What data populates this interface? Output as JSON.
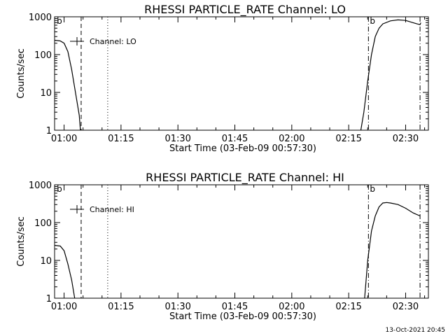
{
  "footer_timestamp": "13-Oct-2021 20:45",
  "chart_data": [
    {
      "type": "line",
      "title": "RHESSI PARTICLE_RATE Channel: LO",
      "xlabel": "Start Time (03-Feb-09 00:57:30)",
      "ylabel": "Counts/sec",
      "yscale": "log",
      "ylim": [
        1,
        1000
      ],
      "yticks": [
        1,
        10,
        100,
        1000
      ],
      "ytick_labels": [
        "1",
        "10",
        "100",
        "1000"
      ],
      "xlim": [
        -2.5,
        96
      ],
      "xticks": [
        0,
        15,
        30,
        45,
        60,
        75,
        90
      ],
      "xtick_labels": [
        "01:00",
        "01:15",
        "01:30",
        "01:45",
        "02:00",
        "02:15",
        "02:30"
      ],
      "legend": {
        "label": "Channel: LO",
        "placement": "top-left"
      },
      "markers": [
        {
          "x": -2.3,
          "label": "b",
          "style": "text"
        },
        {
          "x": 4.5,
          "style": "dashed"
        },
        {
          "x": 11.5,
          "style": "dotted"
        },
        {
          "x": 80.2,
          "style": "dashdot",
          "label": "b"
        },
        {
          "x": 93.8,
          "style": "dashdot"
        }
      ],
      "series": [
        {
          "points": [
            [
              -2.5,
              240
            ],
            [
              -1,
              230
            ],
            [
              0,
              200
            ],
            [
              1,
              120
            ],
            [
              2,
              40
            ],
            [
              3,
              10
            ],
            [
              4,
              2.5
            ],
            [
              4.3,
              1
            ]
          ],
          "points2": [
            [
              78.2,
              1
            ],
            [
              79,
              3
            ],
            [
              80,
              20
            ],
            [
              81,
              100
            ],
            [
              82,
              300
            ],
            [
              83,
              500
            ],
            [
              84,
              650
            ],
            [
              86,
              780
            ],
            [
              88,
              830
            ],
            [
              90,
              800
            ],
            [
              91.5,
              720
            ],
            [
              93,
              650
            ],
            [
              93.8,
              620
            ],
            [
              94,
              700
            ]
          ]
        }
      ]
    },
    {
      "type": "line",
      "title": "RHESSI PARTICLE_RATE Channel: HI",
      "xlabel": "Start Time (03-Feb-09 00:57:30)",
      "ylabel": "Counts/sec",
      "yscale": "log",
      "ylim": [
        1,
        1000
      ],
      "yticks": [
        1,
        10,
        100,
        1000
      ],
      "ytick_labels": [
        "1",
        "10",
        "100",
        "1000"
      ],
      "xlim": [
        -2.5,
        96
      ],
      "xticks": [
        0,
        15,
        30,
        45,
        60,
        75,
        90
      ],
      "xtick_labels": [
        "01:00",
        "01:15",
        "01:30",
        "01:45",
        "02:00",
        "02:15",
        "02:30"
      ],
      "legend": {
        "label": "Channel: HI",
        "placement": "top-left"
      },
      "markers": [
        {
          "x": -2.3,
          "label": "b",
          "style": "text"
        },
        {
          "x": 4.5,
          "style": "dashed"
        },
        {
          "x": 11.5,
          "style": "dotted"
        },
        {
          "x": 80.2,
          "style": "dashdot",
          "label": "b"
        },
        {
          "x": 93.8,
          "style": "dashdot"
        }
      ],
      "series": [
        {
          "points": [
            [
              -2.5,
              25
            ],
            [
              -1,
              24
            ],
            [
              0,
              18
            ],
            [
              1,
              8
            ],
            [
              2,
              3
            ],
            [
              2.8,
              1
            ]
          ],
          "points2": [
            [
              79.2,
              1
            ],
            [
              80,
              10
            ],
            [
              81,
              60
            ],
            [
              82,
              150
            ],
            [
              83,
              260
            ],
            [
              84,
              330
            ],
            [
              85,
              340
            ],
            [
              86,
              330
            ],
            [
              88,
              300
            ],
            [
              90,
              240
            ],
            [
              92,
              180
            ],
            [
              93.8,
              150
            ]
          ]
        }
      ]
    }
  ]
}
